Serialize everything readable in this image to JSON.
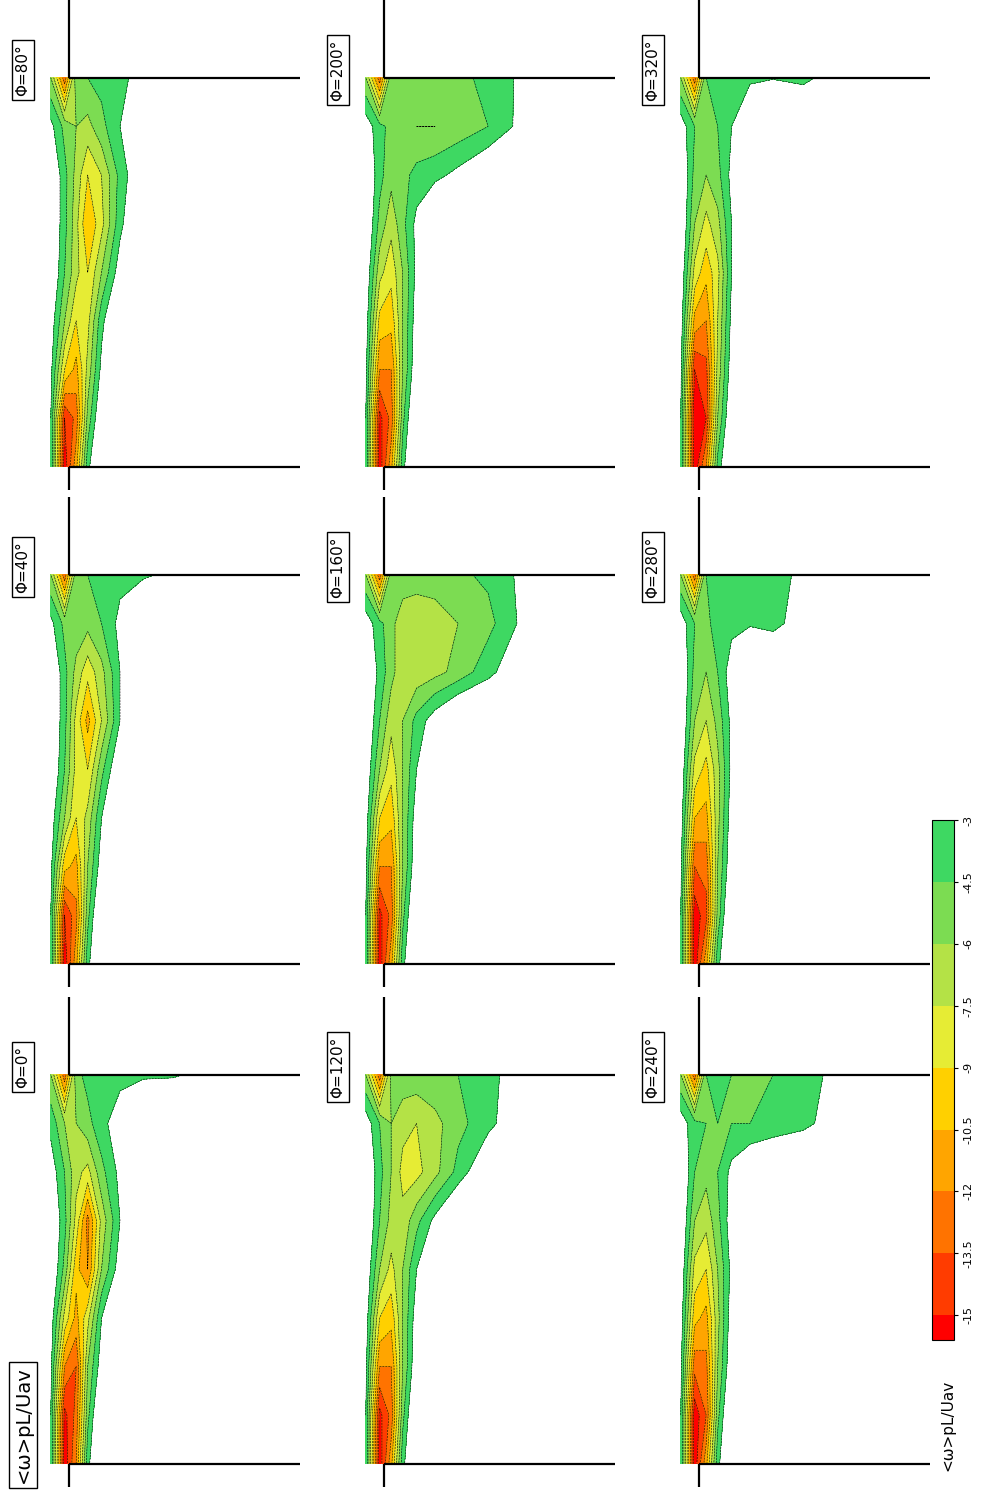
{
  "chart_data": {
    "type": "contour",
    "quantity_label": "<ω>pL/Uav",
    "tick_labels": false,
    "x": [
      -0.08,
      -0.02,
      0.03,
      0.08,
      0.14,
      0.22,
      0.32,
      0.45,
      0.7
    ],
    "y": [
      0,
      0.125,
      0.25,
      0.375,
      0.5,
      0.625,
      0.75,
      0.875,
      1.0
    ],
    "colorbar": {
      "range": [
        -15,
        -3
      ],
      "ticks": [
        -15,
        -13.5,
        -12,
        -10.5,
        -9,
        -7.5,
        -6,
        -4.5,
        -3
      ],
      "colors": [
        "#ff0000",
        "#ff3c00",
        "#ff7300",
        "#ffa500",
        "#ffd000",
        "#e6ec34",
        "#b4e246",
        "#7cdc52",
        "#3ed862"
      ]
    },
    "panels": [
      {
        "label": "Φ=0°",
        "cells": [
          [
            -3,
            -16,
            -12,
            -3.5,
            0,
            0,
            0,
            0,
            0
          ],
          [
            -3,
            -15.5,
            -13,
            -5,
            0,
            0,
            0,
            0,
            0
          ],
          [
            -2.5,
            -12,
            -13.5,
            -6,
            -2,
            0,
            0,
            0,
            0
          ],
          [
            -2,
            -8,
            -11,
            -8,
            -3,
            0,
            0,
            0,
            0
          ],
          [
            -1,
            -5,
            -10,
            -12,
            -6,
            -2,
            0,
            0,
            0
          ],
          [
            -1,
            -4,
            -8,
            -12.5,
            -7,
            -3,
            0,
            0,
            0
          ],
          [
            -2,
            -4.5,
            -7,
            -8,
            -5,
            -2.5,
            0,
            0,
            0
          ],
          [
            -3.5,
            -6,
            -6,
            -5,
            -3.5,
            -2,
            0,
            0,
            0
          ],
          [
            -6,
            -13,
            -5,
            -4,
            -3.5,
            -3.5,
            -3.3,
            -3.2,
            -2
          ]
        ]
      },
      {
        "label": "Φ=40°",
        "cells": [
          [
            -3,
            -16,
            -11,
            -3.5,
            0,
            0,
            0,
            0,
            0
          ],
          [
            -3,
            -15,
            -12.5,
            -5,
            0,
            0,
            0,
            0,
            0
          ],
          [
            -2.5,
            -10,
            -11,
            -6,
            -2,
            0,
            0,
            0,
            0
          ],
          [
            -2,
            -6,
            -9,
            -7,
            -3,
            0,
            0,
            0,
            0
          ],
          [
            -1,
            -4.5,
            -8,
            -9,
            -5,
            -1,
            0,
            0,
            0
          ],
          [
            -1,
            -4,
            -8,
            -11,
            -7.5,
            -3,
            0,
            0,
            0
          ],
          [
            -1,
            -4,
            -6.5,
            -8.5,
            -6.5,
            -3,
            0,
            0,
            0
          ],
          [
            -2.5,
            -5,
            -5,
            -5.5,
            -4.5,
            -2.5,
            0,
            0,
            0
          ],
          [
            -6,
            -13,
            -5,
            -4.5,
            -4,
            -3.5,
            -3.3,
            -2.5,
            -1
          ]
        ]
      },
      {
        "label": "Φ=80°",
        "cells": [
          [
            -3,
            -16,
            -11,
            -3.5,
            0,
            0,
            0,
            0,
            0
          ],
          [
            -3,
            -15,
            -13,
            -5.5,
            -1,
            0,
            0,
            0,
            0
          ],
          [
            -2.5,
            -9,
            -11,
            -7,
            -2.5,
            0,
            0,
            0,
            0
          ],
          [
            -2,
            -6,
            -9,
            -8,
            -3.5,
            0,
            0,
            0,
            0
          ],
          [
            -1,
            -4.5,
            -7,
            -9,
            -6,
            -2,
            0,
            0,
            0
          ],
          [
            -1,
            -4,
            -7,
            -10.5,
            -8,
            -3.5,
            0,
            0,
            0
          ],
          [
            -1,
            -4,
            -6.5,
            -9,
            -7.5,
            -4,
            -1,
            0,
            0
          ],
          [
            -2.5,
            -5,
            -6,
            -6.5,
            -5,
            -3,
            0,
            0,
            0
          ],
          [
            -6,
            -13,
            -5,
            -4.5,
            -4,
            -3.3,
            -2.5,
            -1,
            0
          ]
        ]
      },
      {
        "label": "Φ=120°",
        "cells": [
          [
            -3,
            -16,
            -11,
            -3.5,
            0,
            0,
            0,
            0,
            0
          ],
          [
            -3,
            -15.5,
            -13,
            -5,
            0,
            0,
            0,
            0,
            0
          ],
          [
            -2.5,
            -12,
            -12,
            -6,
            -1.5,
            0,
            0,
            0,
            0
          ],
          [
            -2,
            -9,
            -10,
            -6,
            -2,
            0,
            0,
            0,
            0
          ],
          [
            -1.5,
            -6,
            -8,
            -6,
            -3,
            0,
            0,
            0,
            0
          ],
          [
            -1,
            -4.5,
            -6.5,
            -7,
            -5,
            -2.5,
            0,
            0,
            0
          ],
          [
            -1,
            -4,
            -6,
            -8,
            -8,
            -6.5,
            -4,
            -1,
            0
          ],
          [
            -2,
            -4.5,
            -6,
            -7,
            -7.5,
            -6.5,
            -5,
            -3.5,
            0
          ],
          [
            -6,
            -13,
            -5.5,
            -5,
            -5,
            -4.8,
            -4.5,
            -3.5,
            -1
          ]
        ]
      },
      {
        "label": "Φ=160°",
        "cells": [
          [
            -3,
            -16,
            -11,
            -3.5,
            0,
            0,
            0,
            0,
            0
          ],
          [
            -3,
            -15.5,
            -13,
            -5,
            0,
            0,
            0,
            0,
            0
          ],
          [
            -2.5,
            -12,
            -12,
            -6,
            -1.5,
            0,
            0,
            0,
            0
          ],
          [
            -2,
            -9,
            -10,
            -6,
            -2,
            0,
            0,
            0,
            0
          ],
          [
            -1.5,
            -6,
            -8.5,
            -6,
            -3,
            0,
            0,
            0,
            0
          ],
          [
            -1,
            -4.5,
            -7,
            -6,
            -4,
            -2,
            0,
            0,
            0
          ],
          [
            -1,
            -3.5,
            -5.5,
            -7,
            -7,
            -6.5,
            -5.5,
            -3.5,
            0
          ],
          [
            -2,
            -4,
            -5.5,
            -7,
            -7.5,
            -7,
            -6,
            -5,
            -1
          ],
          [
            -6,
            -13,
            -5,
            -5,
            -5,
            -5,
            -4.8,
            -4.2,
            -1.5
          ]
        ]
      },
      {
        "label": "Φ=200°",
        "cells": [
          [
            -3,
            -16,
            -11,
            -3.5,
            0,
            0,
            0,
            0,
            0
          ],
          [
            -3,
            -15.5,
            -13,
            -5,
            0,
            0,
            0,
            0,
            0
          ],
          [
            -2.5,
            -12,
            -12,
            -6,
            -1.5,
            0,
            0,
            0,
            0
          ],
          [
            -2,
            -9.5,
            -10,
            -6,
            -2,
            0,
            0,
            0,
            0
          ],
          [
            -1.5,
            -7,
            -8.5,
            -6,
            -2.5,
            0,
            0,
            0,
            0
          ],
          [
            -1,
            -5,
            -7,
            -5,
            -2.5,
            0,
            0,
            0,
            0
          ],
          [
            -1,
            -4,
            -5.5,
            -5,
            -4,
            -3.5,
            -2.5,
            -1,
            0
          ],
          [
            -2,
            -4,
            -5,
            -5.5,
            -6,
            -6,
            -5.5,
            -4.5,
            -1
          ],
          [
            -6,
            -13,
            -4.8,
            -4.8,
            -5,
            -5,
            -4.8,
            -4.2,
            -1.5
          ]
        ]
      },
      {
        "label": "Φ=240°",
        "cells": [
          [
            -3,
            -16,
            -11,
            -3.5,
            0,
            0,
            0,
            0,
            0
          ],
          [
            -3,
            -16,
            -13.5,
            -5,
            0,
            0,
            0,
            0,
            0
          ],
          [
            -2.5,
            -13,
            -12.5,
            -6,
            -1.5,
            0,
            0,
            0,
            0
          ],
          [
            -2,
            -10,
            -11,
            -6.5,
            -2,
            0,
            0,
            0,
            0
          ],
          [
            -1.5,
            -8,
            -9,
            -6,
            -2.5,
            0,
            0,
            0,
            0
          ],
          [
            -1,
            -6,
            -7,
            -5,
            -2,
            0,
            0,
            0,
            0
          ],
          [
            -1,
            -4.5,
            -5.5,
            -4.5,
            -2.5,
            -1,
            0,
            0,
            0
          ],
          [
            -2,
            -4,
            -4.5,
            -4.5,
            -4.5,
            -4.5,
            -4.2,
            -3.5,
            -1
          ],
          [
            -6,
            -13,
            -4.5,
            -4.2,
            -4.5,
            -4.5,
            -4.5,
            -3.8,
            -1.5
          ]
        ]
      },
      {
        "label": "Φ=280°",
        "cells": [
          [
            -3,
            -16,
            -11,
            -3.5,
            0,
            0,
            0,
            0,
            0
          ],
          [
            -3,
            -16,
            -14,
            -5.5,
            0,
            0,
            0,
            0,
            0
          ],
          [
            -2.5,
            -13.5,
            -13,
            -6,
            -1.5,
            0,
            0,
            0,
            0
          ],
          [
            -2,
            -10.5,
            -11,
            -6.5,
            -2,
            0,
            0,
            0,
            0
          ],
          [
            -1.5,
            -8,
            -9.5,
            -6.5,
            -2.5,
            0,
            0,
            0,
            0
          ],
          [
            -1,
            -6,
            -7.5,
            -5.5,
            -2.5,
            0,
            0,
            0,
            0
          ],
          [
            -1,
            -5,
            -6,
            -4.5,
            -2,
            0,
            0,
            0,
            0
          ],
          [
            -2,
            -4.5,
            -4.8,
            -4,
            -3.5,
            -3.2,
            -3.6,
            -2,
            0
          ],
          [
            -6,
            -13,
            -4.5,
            -4,
            -4,
            -4,
            -3.8,
            -2.5,
            -1
          ]
        ]
      },
      {
        "label": "Φ=320°",
        "cells": [
          [
            -3,
            -16,
            -12,
            -4,
            0,
            0,
            0,
            0,
            0
          ],
          [
            -3,
            -16.5,
            -15,
            -6,
            -1,
            0,
            0,
            0,
            0
          ],
          [
            -2.5,
            -15,
            -14,
            -7,
            -2,
            0,
            0,
            0,
            0
          ],
          [
            -2,
            -11,
            -12,
            -7.5,
            -2.5,
            0,
            0,
            0,
            0
          ],
          [
            -1.5,
            -8,
            -10,
            -8,
            -3,
            0,
            0,
            0,
            0
          ],
          [
            -1,
            -6,
            -8,
            -6.5,
            -3,
            0,
            0,
            0,
            0
          ],
          [
            -1,
            -5,
            -6,
            -5,
            -2.5,
            0,
            0,
            0,
            0
          ],
          [
            -2,
            -4.5,
            -5,
            -4.5,
            -3,
            -1,
            0,
            0,
            0
          ],
          [
            -6,
            -13,
            -4.5,
            -4,
            -3.6,
            -3.3,
            -3.1,
            -3.5,
            -1
          ]
        ]
      }
    ]
  }
}
